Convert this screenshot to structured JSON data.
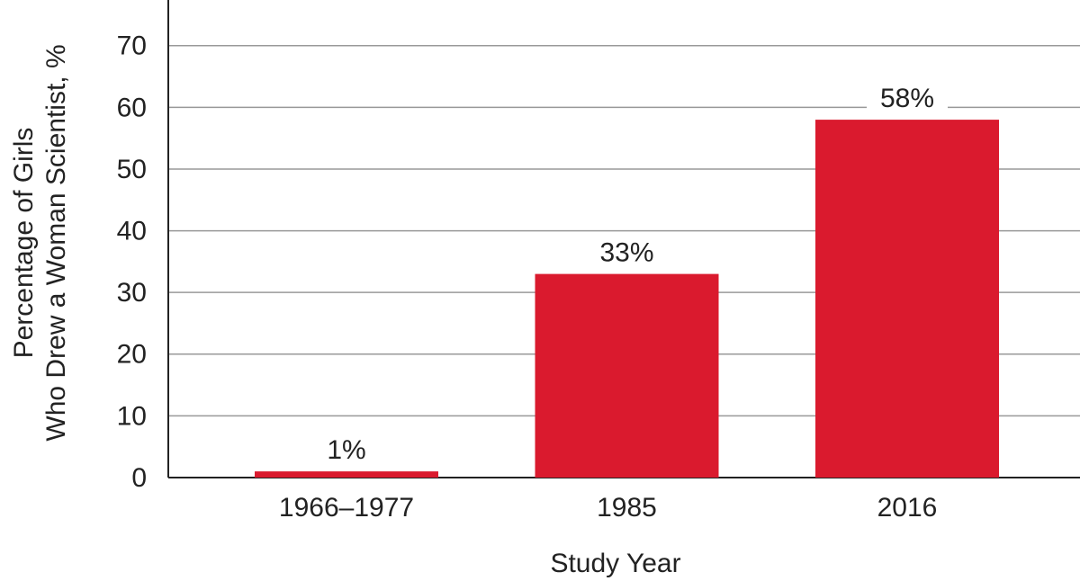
{
  "chart_data": {
    "type": "bar",
    "xlabel": "Study Year",
    "ylabel": [
      "Percentage of Girls",
      "Who Drew a Woman Scientist, %"
    ],
    "categories": [
      "1966–1977",
      "1985",
      "2016"
    ],
    "values": [
      1,
      33,
      58
    ],
    "value_labels": [
      "1%",
      "33%",
      "58%"
    ],
    "color": "#da1a2e",
    "ylim": [
      0,
      77.4
    ],
    "yticks": [
      0,
      10,
      20,
      30,
      40,
      50,
      60,
      70
    ],
    "grid": true
  }
}
